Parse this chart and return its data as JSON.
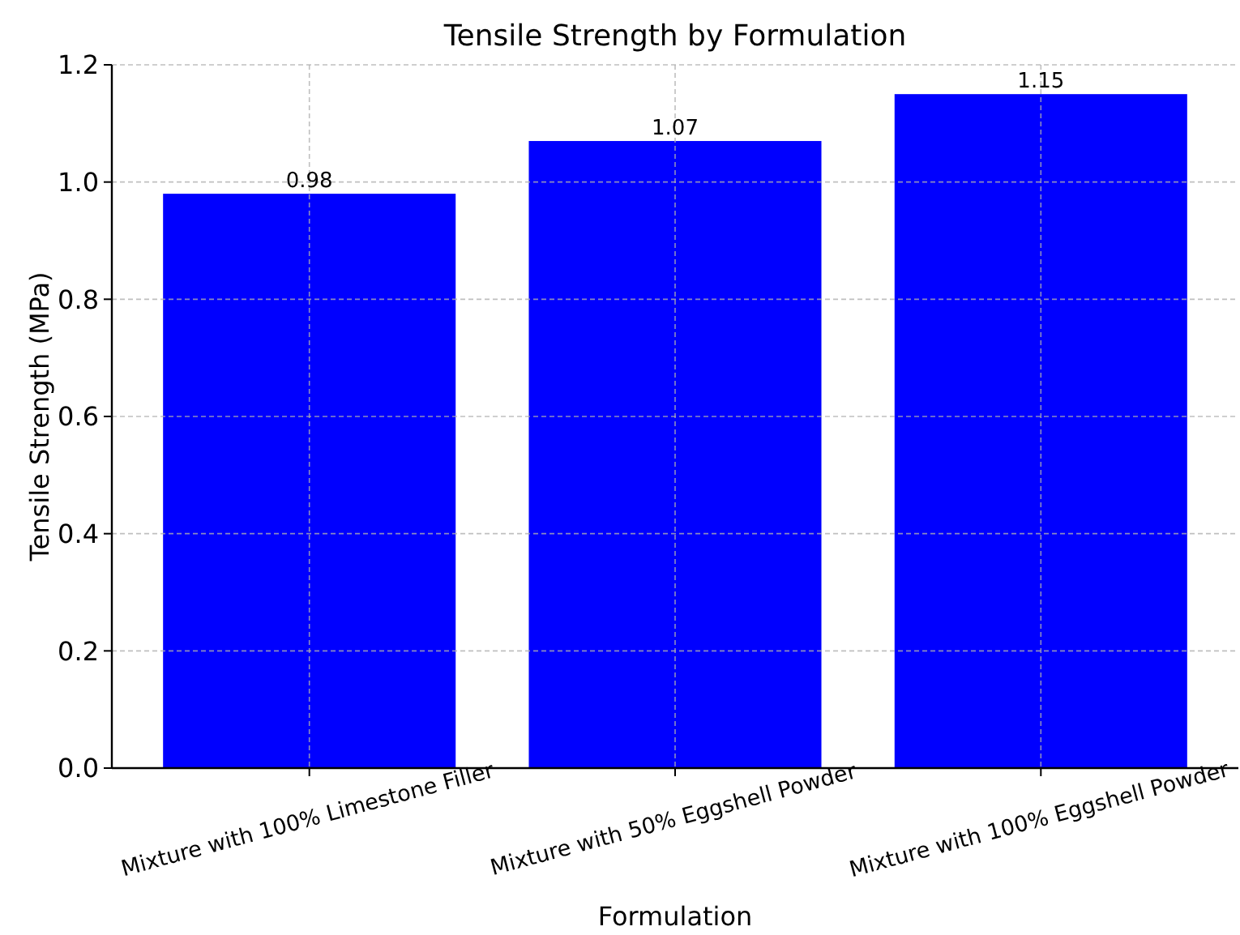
{
  "chart_data": {
    "type": "bar",
    "title": "Tensile Strength by Formulation",
    "xlabel": "Formulation",
    "ylabel": "Tensile Strength (MPa)",
    "categories": [
      "Mixture with 100% Limestone Filler",
      "Mixture with 50% Eggshell Powder",
      "Mixture with 100% Eggshell Powder"
    ],
    "values": [
      0.98,
      1.07,
      1.15
    ],
    "color": "#0000ff",
    "data_labels": true,
    "ylim": [
      0,
      1.2
    ],
    "yticks": [
      {
        "value": 0,
        "label": "0.0"
      },
      {
        "value": 0.2,
        "label": "0.2"
      },
      {
        "value": 0.4,
        "label": "0.4"
      },
      {
        "value": 0.6,
        "label": "0.6"
      },
      {
        "value": 0.8,
        "label": "0.8"
      },
      {
        "value": 1.0,
        "label": "1.0"
      },
      {
        "value": 1.2,
        "label": "1.2"
      }
    ],
    "grid": true
  }
}
